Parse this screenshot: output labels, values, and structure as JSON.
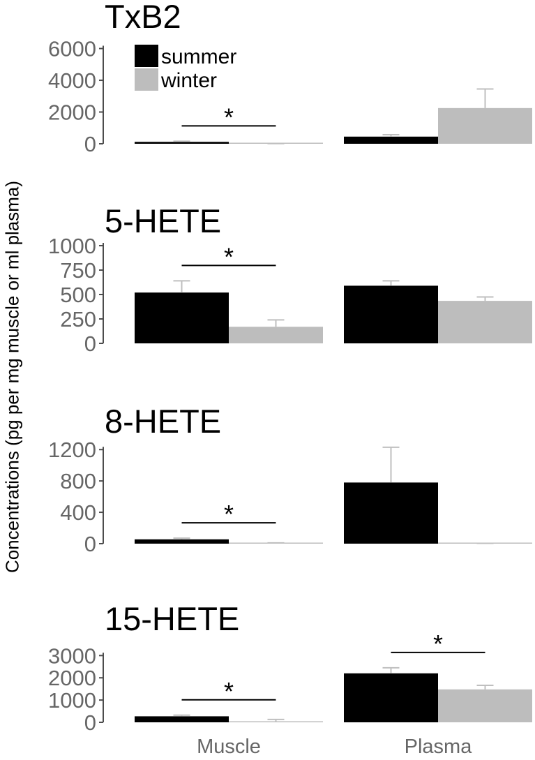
{
  "chart_data": {
    "type": "bar",
    "ylabel": "Concentrations (pg per mg muscle or ml plasma)",
    "categories": [
      "Muscle",
      "Plasma"
    ],
    "legend": {
      "placement": "top-left",
      "entries": [
        {
          "name": "summer",
          "color": "#000000"
        },
        {
          "name": "winter",
          "color": "#BDBDBD"
        }
      ]
    },
    "grid": false,
    "colors": {
      "summer": "#000000",
      "winter": "#BDBDBD",
      "axis": "#4d4d4d",
      "tick_label": "#666666",
      "error_bar": "#bfbfbf"
    },
    "panels": [
      {
        "title": "TxB2",
        "ylim": [
          0,
          6200
        ],
        "yticks": [
          0,
          2000,
          4000,
          6000
        ],
        "series": [
          {
            "name": "summer",
            "values": [
              120,
              450
            ],
            "errors": [
              40,
              120
            ]
          },
          {
            "name": "winter",
            "values": [
              5,
              2250
            ],
            "errors": [
              5,
              1200
            ]
          }
        ],
        "significance": [
          {
            "category": "Muscle",
            "label": "*"
          }
        ]
      },
      {
        "title": "5-HETE",
        "ylim": [
          0,
          1000
        ],
        "yticks": [
          0,
          250,
          500,
          750,
          1000
        ],
        "series": [
          {
            "name": "summer",
            "values": [
              520,
              590
            ],
            "errors": [
              120,
              50
            ]
          },
          {
            "name": "winter",
            "values": [
              170,
              435
            ],
            "errors": [
              70,
              40
            ]
          }
        ],
        "significance": [
          {
            "category": "Muscle",
            "label": "*"
          }
        ]
      },
      {
        "title": "8-HETE",
        "ylim": [
          0,
          1300
        ],
        "yticks": [
          0,
          400,
          800,
          1200
        ],
        "series": [
          {
            "name": "summer",
            "values": [
              55,
              780
            ],
            "errors": [
              15,
              450
            ]
          },
          {
            "name": "winter",
            "values": [
              5,
              2
            ],
            "errors": [
              5,
              2
            ]
          }
        ],
        "significance": [
          {
            "category": "Muscle",
            "label": "*"
          }
        ]
      },
      {
        "title": "15-HETE",
        "ylim": [
          0,
          3700
        ],
        "yticks": [
          0,
          1000,
          2000,
          3000
        ],
        "series": [
          {
            "name": "summer",
            "values": [
              270,
              2200
            ],
            "errors": [
              50,
              250
            ]
          },
          {
            "name": "winter",
            "values": [
              40,
              1480
            ],
            "errors": [
              90,
              180
            ]
          }
        ],
        "significance": [
          {
            "category": "Muscle",
            "label": "*"
          },
          {
            "category": "Plasma",
            "label": "*"
          }
        ]
      }
    ]
  }
}
